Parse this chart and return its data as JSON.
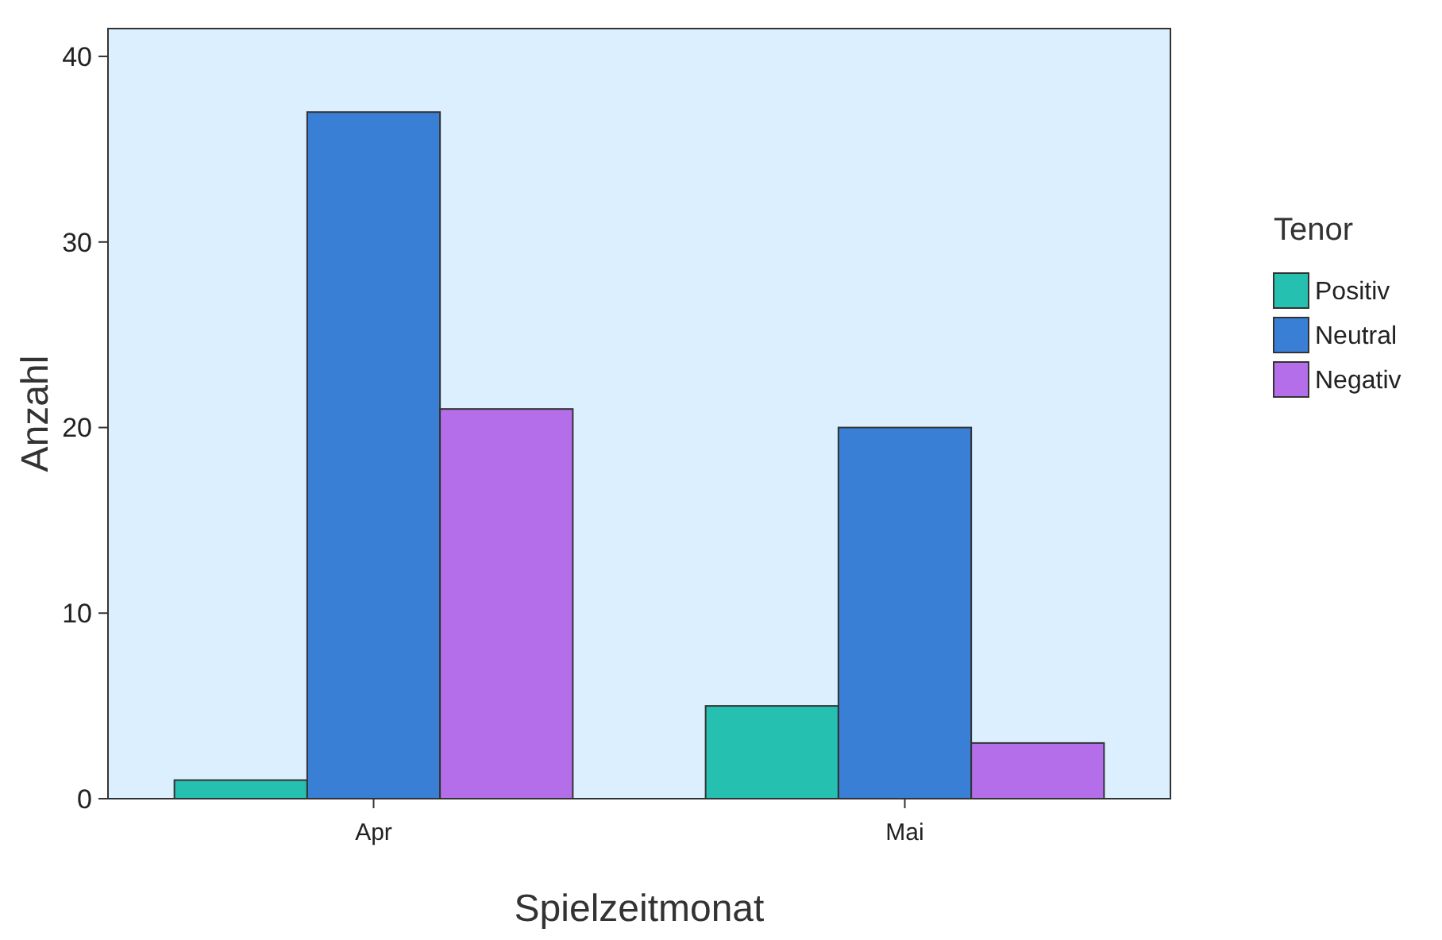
{
  "chart_data": {
    "type": "bar",
    "xlabel": "Spielzeitmonat",
    "ylabel": "Anzahl",
    "legend_title": "Tenor",
    "categories": [
      "Apr",
      "Mai"
    ],
    "series": [
      {
        "name": "Positiv",
        "color": "#26c0b1",
        "values": [
          1,
          5
        ]
      },
      {
        "name": "Neutral",
        "color": "#3a7fd6",
        "values": [
          37,
          20
        ]
      },
      {
        "name": "Negativ",
        "color": "#b46ee9",
        "values": [
          21,
          3
        ]
      }
    ],
    "ylim": [
      0,
      41.5
    ],
    "yticks": [
      0,
      10,
      20,
      30,
      40
    ],
    "grid": false,
    "legend": "right"
  }
}
